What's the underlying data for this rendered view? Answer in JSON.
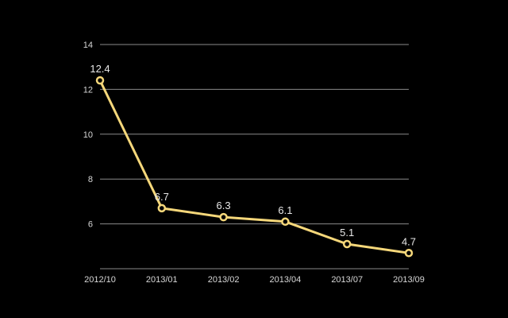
{
  "chart_data": {
    "type": "line",
    "title": "",
    "xlabel": "",
    "ylabel": "",
    "categories": [
      "2012/10",
      "2013/01",
      "2013/02",
      "2013/04",
      "2013/07",
      "2013/09"
    ],
    "series": [
      {
        "values": [
          12.4,
          6.7,
          6.3,
          6.1,
          5.1,
          4.7
        ]
      }
    ],
    "data_labels": [
      "12.4",
      "6.7",
      "6.3",
      "6.1",
      "5.1",
      "4.7"
    ],
    "y_ticks": [
      6,
      8,
      10,
      12,
      14
    ],
    "ylim": [
      4,
      14
    ],
    "grid": true,
    "legend": "none",
    "colors": {
      "background": "#000000",
      "line": "#f5d77a",
      "marker_fill": "#000000",
      "grid": "#8a8a8a",
      "text": "#d8d8d8"
    }
  }
}
